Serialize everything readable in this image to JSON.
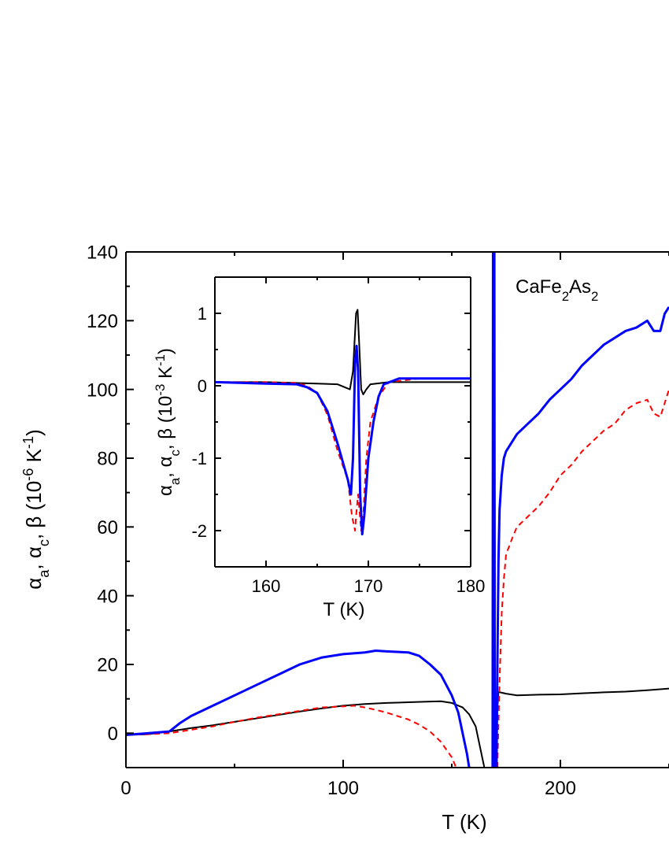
{
  "chart_data": [
    {
      "type": "line",
      "xlabel": "T (K)",
      "ylabel": [
        {
          "text": "α"
        },
        {
          "sub": "a"
        },
        {
          "text": ", α"
        },
        {
          "sub": "c"
        },
        {
          "text": ", β (10"
        },
        {
          "sup": "-6"
        },
        {
          "text": " K"
        },
        {
          "sup": "-1"
        },
        {
          "text": ")"
        }
      ],
      "annotation": [
        {
          "text": "CaFe"
        },
        {
          "sub": "2"
        },
        {
          "text": "As"
        },
        {
          "sub": "2"
        }
      ],
      "xlim": [
        0,
        250
      ],
      "ylim": [
        -10,
        140
      ],
      "xticks": [
        0,
        100,
        200
      ],
      "yticks": [
        0,
        20,
        40,
        60,
        80,
        100,
        120,
        140
      ],
      "xminorticks": [
        50,
        150,
        250
      ],
      "yminorticks": [
        10,
        30,
        50,
        70,
        90,
        110,
        130
      ],
      "series": [
        {
          "color": "#000000",
          "dash": false,
          "x": [
            0,
            10,
            20,
            30,
            40,
            50,
            60,
            70,
            80,
            90,
            100,
            110,
            120,
            130,
            140,
            145,
            150,
            155,
            158,
            161,
            163,
            165,
            167,
            170.2,
            170.8,
            171.5,
            175,
            180,
            190,
            200,
            210,
            220,
            230,
            240,
            250
          ],
          "values": [
            -0.5,
            -0.3,
            0.5,
            1.5,
            2.3,
            3.3,
            4.3,
            5.3,
            6.3,
            7.2,
            8,
            8.5,
            8.8,
            9,
            9.2,
            9.3,
            8.8,
            7.5,
            5.5,
            2,
            -4,
            -10,
            null,
            -10,
            5,
            12,
            11.5,
            11,
            11.2,
            11.3,
            11.6,
            11.9,
            12.1,
            12.5,
            13
          ]
        },
        {
          "color": "#ff0000",
          "dash": true,
          "x": [
            0,
            10,
            20,
            30,
            40,
            50,
            60,
            70,
            80,
            90,
            100,
            105,
            110,
            115,
            120,
            125,
            130,
            135,
            140,
            145,
            150,
            152,
            160,
            171,
            172,
            173,
            174,
            175,
            178,
            180,
            185,
            190,
            195,
            200,
            205,
            210,
            215,
            220,
            225,
            230,
            235,
            240,
            243,
            246,
            250
          ],
          "values": [
            -0.5,
            -0.3,
            0,
            1,
            2,
            3.3,
            4.5,
            5.5,
            6.5,
            7.5,
            7.8,
            8,
            7.5,
            6.8,
            6,
            5,
            4,
            2.5,
            0.5,
            -2.5,
            -7,
            -10,
            null,
            -10,
            15,
            35,
            45,
            52,
            57,
            60,
            63,
            66,
            70,
            75,
            78,
            82,
            85,
            88,
            90,
            94,
            96,
            97,
            93,
            92,
            100
          ]
        },
        {
          "color": "#0000ff",
          "dash": false,
          "x": [
            0,
            10,
            20,
            25,
            30,
            40,
            50,
            60,
            70,
            80,
            90,
            100,
            110,
            115,
            120,
            130,
            135,
            140,
            145,
            150,
            153,
            155,
            157,
            158,
            165,
            168.8,
            169,
            169.6,
            169.8,
            170.3,
            170.6,
            171,
            171.5,
            172,
            173,
            174,
            175,
            178,
            180,
            185,
            190,
            195,
            200,
            205,
            210,
            215,
            220,
            225,
            230,
            235,
            240,
            243,
            246,
            248,
            250
          ],
          "values": [
            -0.5,
            0,
            0.5,
            3,
            5,
            8,
            11,
            14,
            17,
            20,
            22,
            23,
            23.5,
            24,
            23.8,
            23.5,
            22.5,
            20,
            17,
            11,
            6,
            0,
            -6,
            -10,
            null,
            -10,
            140,
            140,
            -10,
            null,
            -10,
            20,
            50,
            65,
            75,
            80,
            82,
            85,
            87,
            90,
            93,
            97,
            100,
            103,
            107,
            110,
            113,
            115,
            117,
            118,
            120,
            117,
            117,
            122,
            124
          ]
        }
      ]
    },
    {
      "type": "line",
      "xlabel": "T (K)",
      "ylabel": [
        {
          "text": "α"
        },
        {
          "sub": "a"
        },
        {
          "text": ", α"
        },
        {
          "sub": "c"
        },
        {
          "text": ", β (10"
        },
        {
          "sup": "-3"
        },
        {
          "text": " K"
        },
        {
          "sup": "-1"
        },
        {
          "text": ")"
        }
      ],
      "xlim": [
        155,
        180
      ],
      "ylim": [
        -2.5,
        1.5
      ],
      "xticks": [
        160,
        170,
        180
      ],
      "yticks": [
        -2,
        -1,
        0,
        1
      ],
      "xminorticks": [
        165,
        175
      ],
      "yminorticks": [
        -1.5,
        -0.5,
        0.5
      ],
      "series": [
        {
          "color": "#000000",
          "dash": false,
          "x": [
            155,
            160,
            165,
            167,
            168.2,
            168.5,
            168.8,
            168.95,
            169.1,
            169.3,
            169.5,
            169.8,
            170.2,
            172,
            175,
            180
          ],
          "values": [
            0.05,
            0.05,
            0.03,
            0.02,
            -0.05,
            0.2,
            1.0,
            1.05,
            0.6,
            -0.05,
            -0.12,
            -0.05,
            0.02,
            0.05,
            0.05,
            0.05
          ]
        },
        {
          "color": "#ff0000",
          "dash": true,
          "x": [
            155,
            160,
            163,
            164,
            165,
            166,
            167,
            168,
            168.4,
            168.7,
            168.8,
            169,
            169.3,
            169.5,
            169.8,
            170.2,
            171,
            172,
            175,
            180
          ],
          "values": [
            0.05,
            0.05,
            0.04,
            0,
            -0.1,
            -0.4,
            -0.9,
            -1.3,
            -1.8,
            -2.0,
            -1.8,
            -1.5,
            -2.0,
            -1.8,
            -1.0,
            -0.5,
            -0.15,
            0.05,
            0.1,
            0.1
          ]
        },
        {
          "color": "#0000ff",
          "dash": false,
          "x": [
            155,
            160,
            163,
            164,
            165,
            166,
            167,
            168,
            168.3,
            168.5,
            168.7,
            168.85,
            169,
            169.2,
            169.4,
            169.6,
            170,
            170.5,
            171,
            171.5,
            173,
            180
          ],
          "values": [
            0.05,
            0.03,
            0.02,
            -0.02,
            -0.1,
            -0.35,
            -0.8,
            -1.3,
            -1.5,
            -1.0,
            0.3,
            0.55,
            0.2,
            -1.5,
            -2.05,
            -1.8,
            -1.0,
            -0.5,
            -0.15,
            0.02,
            0.1,
            0.1
          ]
        }
      ]
    }
  ]
}
